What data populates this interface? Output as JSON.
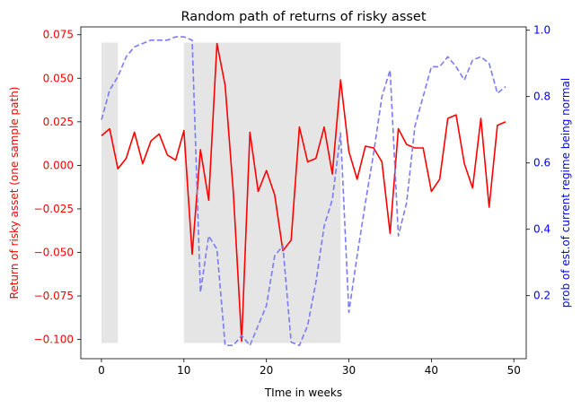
{
  "chart_data": {
    "type": "line",
    "title": "Random path of returns of risky asset",
    "xlabel": "TIme in weeks",
    "ylabel_left": "Return of risky asset (one sample path)",
    "ylabel_right": "prob of est.of current regime being normal",
    "xlim": [
      -2.5,
      51.5
    ],
    "ylim_left": [
      -0.111,
      0.0795
    ],
    "ylim_right": [
      0.01,
      1.01
    ],
    "x_ticks": [
      0,
      10,
      20,
      30,
      40,
      50
    ],
    "y_ticks_left": [
      -0.1,
      -0.075,
      -0.05,
      -0.025,
      0.0,
      0.025,
      0.05,
      0.075
    ],
    "y_ticks_left_labels": [
      "−0.100",
      "−0.075",
      "−0.050",
      "−0.025",
      "0.000",
      "0.025",
      "0.050",
      "0.075"
    ],
    "y_ticks_right": [
      0.2,
      0.4,
      0.6,
      0.8,
      1.0
    ],
    "y_ticks_right_labels": [
      "0.2",
      "0.4",
      "0.6",
      "0.8",
      "1.0"
    ],
    "grid": false,
    "colors": {
      "left_axis": "#ff0000",
      "right_axis": "#0000ff",
      "returns_line": "#ff0000",
      "prob_line": "#7b7bf5",
      "shading": "#e5e5e5"
    },
    "shaded_regions": [
      {
        "x_start": 0,
        "x_end": 2
      },
      {
        "x_start": 10,
        "x_end": 29
      }
    ],
    "shade_y_range": [
      -0.102,
      0.0705
    ],
    "series": [
      {
        "axis": "left",
        "style": "solid",
        "x": [
          0,
          1,
          2,
          3,
          4,
          5,
          6,
          7,
          8,
          9,
          10,
          11,
          12,
          13,
          14,
          15,
          16,
          17,
          18,
          19,
          20,
          21,
          22,
          23,
          24,
          25,
          26,
          27,
          28,
          29,
          30,
          31,
          32,
          33,
          34,
          35,
          36,
          37,
          38,
          39,
          40,
          41,
          42,
          43,
          44,
          45,
          46,
          47,
          48,
          49
        ],
        "values": [
          0.017,
          0.021,
          -0.002,
          0.004,
          0.019,
          0.001,
          0.014,
          0.018,
          0.006,
          0.003,
          0.02,
          -0.051,
          0.009,
          -0.02,
          0.07,
          0.046,
          -0.016,
          -0.101,
          0.019,
          -0.015,
          -0.003,
          -0.017,
          -0.049,
          -0.043,
          0.022,
          0.002,
          0.004,
          0.022,
          -0.005,
          0.049,
          0.008,
          -0.008,
          0.011,
          0.01,
          0.002,
          -0.039,
          0.021,
          0.012,
          0.01,
          0.01,
          -0.015,
          -0.008,
          0.027,
          0.029,
          0.001,
          -0.013,
          0.027,
          -0.024,
          0.023,
          0.025
        ]
      },
      {
        "axis": "right",
        "style": "dashed",
        "x": [
          0,
          1,
          2,
          3,
          4,
          5,
          6,
          7,
          8,
          9,
          10,
          11,
          12,
          13,
          14,
          15,
          16,
          17,
          18,
          19,
          20,
          21,
          22,
          23,
          24,
          25,
          26,
          27,
          28,
          29,
          30,
          31,
          32,
          33,
          34,
          35,
          36,
          37,
          38,
          39,
          40,
          41,
          42,
          43,
          44,
          45,
          46,
          47,
          48,
          49
        ],
        "values": [
          0.73,
          0.82,
          0.86,
          0.92,
          0.95,
          0.96,
          0.97,
          0.97,
          0.97,
          0.98,
          0.98,
          0.97,
          0.21,
          0.38,
          0.34,
          0.05,
          0.05,
          0.08,
          0.05,
          0.11,
          0.17,
          0.32,
          0.35,
          0.06,
          0.05,
          0.11,
          0.24,
          0.41,
          0.49,
          0.69,
          0.15,
          0.32,
          0.48,
          0.63,
          0.8,
          0.88,
          0.38,
          0.48,
          0.71,
          0.8,
          0.89,
          0.89,
          0.92,
          0.89,
          0.85,
          0.91,
          0.92,
          0.9,
          0.81,
          0.83
        ]
      }
    ]
  }
}
